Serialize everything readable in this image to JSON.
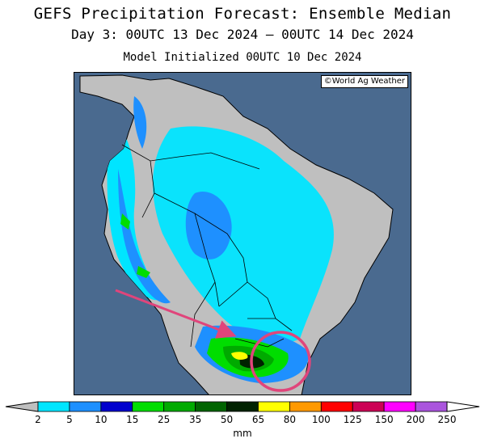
{
  "header": {
    "title": "GEFS Precipitation Forecast: Ensemble Median",
    "period": "Day 3: 00UTC 13 Dec 2024 — 00UTC 14 Dec 2024",
    "init": "Model Initialized 00UTC 10 Dec 2024"
  },
  "map": {
    "credit": "©World Ag Weather",
    "ocean_color": "#4a6a8f",
    "land_color": "#bfbfbf",
    "border_color": "#000000"
  },
  "legend": {
    "unit": "mm",
    "levels": [
      "2",
      "5",
      "10",
      "15",
      "25",
      "35",
      "50",
      "65",
      "80",
      "100",
      "125",
      "150",
      "200",
      "250"
    ],
    "colors": [
      "#bfbfbf",
      "#00e5ff",
      "#1e90ff",
      "#0000cd",
      "#00dd00",
      "#00aa00",
      "#006400",
      "#002200",
      "#ffff00",
      "#ff9900",
      "#ff0000",
      "#cc0055",
      "#ff00ff",
      "#aa55dd",
      "#ffffff"
    ]
  },
  "annotation": {
    "arrow_color": "#e0457b",
    "circle_color": "#e0457b"
  }
}
